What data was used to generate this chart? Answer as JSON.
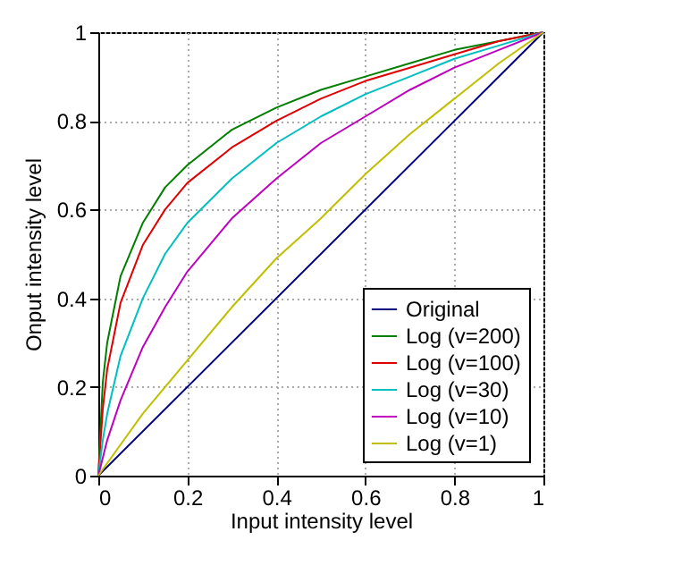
{
  "chart_data": {
    "type": "line",
    "xlabel": "Input intensity level",
    "ylabel": "Onput intensity level",
    "x": [
      0,
      0.01,
      0.02,
      0.05,
      0.1,
      0.15,
      0.2,
      0.3,
      0.4,
      0.5,
      0.6,
      0.7,
      0.8,
      0.9,
      1
    ],
    "series": [
      {
        "name": "Original",
        "color": "#00007f",
        "x": [
          0,
          1
        ],
        "values": [
          0,
          1
        ]
      },
      {
        "name": "Log (v=200)",
        "color": "#007f00",
        "values": [
          0,
          0.21,
          0.3,
          0.45,
          0.57,
          0.65,
          0.7,
          0.78,
          0.83,
          0.87,
          0.9,
          0.93,
          0.96,
          0.98,
          1
        ]
      },
      {
        "name": "Log (v=100)",
        "color": "#e00000",
        "values": [
          0,
          0.15,
          0.24,
          0.39,
          0.52,
          0.6,
          0.66,
          0.74,
          0.8,
          0.85,
          0.89,
          0.92,
          0.95,
          0.98,
          1
        ]
      },
      {
        "name": "Log (v=30)",
        "color": "#00bfbf",
        "values": [
          0,
          0.08,
          0.14,
          0.27,
          0.4,
          0.5,
          0.57,
          0.67,
          0.75,
          0.81,
          0.86,
          0.9,
          0.94,
          0.97,
          1
        ]
      },
      {
        "name": "Log (v=10)",
        "color": "#bf00bf",
        "values": [
          0,
          0.04,
          0.08,
          0.17,
          0.29,
          0.38,
          0.46,
          0.58,
          0.67,
          0.75,
          0.81,
          0.87,
          0.92,
          0.96,
          1
        ]
      },
      {
        "name": "Log (v=1)",
        "color": "#bfbf00",
        "x": [
          0,
          0.05,
          0.1,
          0.2,
          0.3,
          0.4,
          0.5,
          0.6,
          0.7,
          0.8,
          0.9,
          1
        ],
        "values": [
          0,
          0.07,
          0.14,
          0.26,
          0.38,
          0.49,
          0.58,
          0.68,
          0.77,
          0.85,
          0.93,
          1
        ]
      }
    ],
    "xlim": [
      0,
      1
    ],
    "ylim": [
      0,
      1
    ],
    "xticks": [
      0,
      0.2,
      0.4,
      0.6,
      0.8,
      1
    ],
    "yticks": [
      0,
      0.2,
      0.4,
      0.6,
      0.8,
      1
    ],
    "grid": true,
    "legend": "bottom right",
    "line_style": "solid"
  }
}
